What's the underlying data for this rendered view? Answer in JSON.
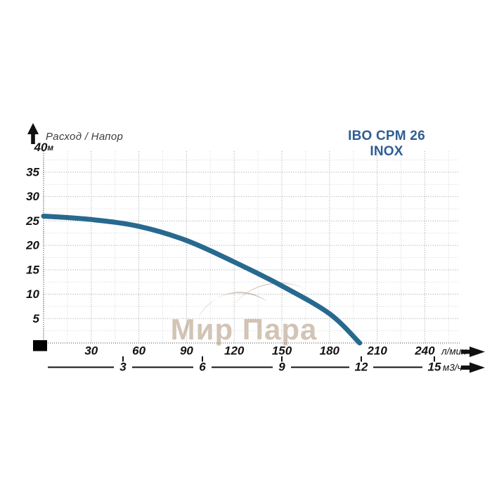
{
  "header": {
    "flow_head_label": "Расход / Напор",
    "title": "IBO CPM 26 INOX",
    "title_color": "#2e5e94"
  },
  "watermark": {
    "text": "Мир Пара",
    "color": "#cbb9a8"
  },
  "chart_data": {
    "type": "line",
    "title": "IBO CPM 26 INOX",
    "series": [
      {
        "name": "IBO CPM 26 INOX head curve",
        "points": [
          [
            0,
            26
          ],
          [
            30,
            25.3
          ],
          [
            60,
            23.9
          ],
          [
            90,
            21
          ],
          [
            120,
            16.6
          ],
          [
            150,
            11.7
          ],
          [
            180,
            6
          ],
          [
            199,
            0
          ]
        ]
      }
    ],
    "x_axis": {
      "unit": "л/мин",
      "ticks": [
        30,
        60,
        90,
        120,
        150,
        180,
        210,
        240
      ],
      "range": [
        0,
        260
      ]
    },
    "x2_axis": {
      "unit": "м3/ч",
      "ticks": [
        3,
        6,
        9,
        12,
        15
      ],
      "lpm_per_unit": 16.667
    },
    "y_axis": {
      "unit": "м",
      "ticks": [
        5,
        10,
        15,
        20,
        25,
        30,
        35,
        40
      ],
      "range": [
        0,
        40
      ],
      "top_tick_label": "40м"
    },
    "grid": {
      "major_x_step": 30,
      "minor_x_step": 15,
      "major_y_step": 5,
      "minor_y_step": 2.5,
      "style": "dotted"
    },
    "colors": {
      "curve": "#27698f",
      "grid_major": "#989da2",
      "grid_minor": "#cfd3d6",
      "axis_line": "#63676b",
      "label": "#121212"
    },
    "legend": "none"
  }
}
